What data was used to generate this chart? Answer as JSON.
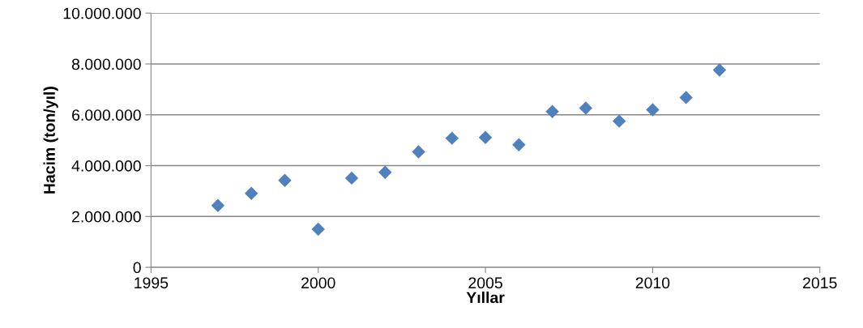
{
  "chart_data": {
    "type": "scatter",
    "xlabel": "Yıllar",
    "ylabel": "Hacim (ton/yıl)",
    "x": [
      1997,
      1998,
      1999,
      2000,
      2001,
      2002,
      2003,
      2004,
      2005,
      2006,
      2007,
      2008,
      2009,
      2010,
      2011,
      2012
    ],
    "series": [
      {
        "color": "#4f81bd",
        "values": [
          2430000,
          2910000,
          3420000,
          1500000,
          3510000,
          3740000,
          4540000,
          5080000,
          5110000,
          4820000,
          6130000,
          6260000,
          5750000,
          6200000,
          6680000,
          7760000
        ]
      }
    ],
    "xlim": [
      1995,
      2015
    ],
    "xticks": [
      1995,
      2000,
      2005,
      2010,
      2015
    ],
    "ylim": [
      0,
      10000000
    ],
    "yticks": [
      0,
      {
        "value": 2000000,
        "label": "2.000.000"
      },
      {
        "value": 4000000,
        "label": "4.000.000"
      },
      {
        "value": 6000000,
        "label": "6.000.000"
      },
      {
        "value": 8000000,
        "label": "8.000.000"
      },
      {
        "value": 10000000,
        "label": "10.000.000"
      }
    ],
    "grid": "y",
    "marker": "diamond",
    "legend": false
  }
}
